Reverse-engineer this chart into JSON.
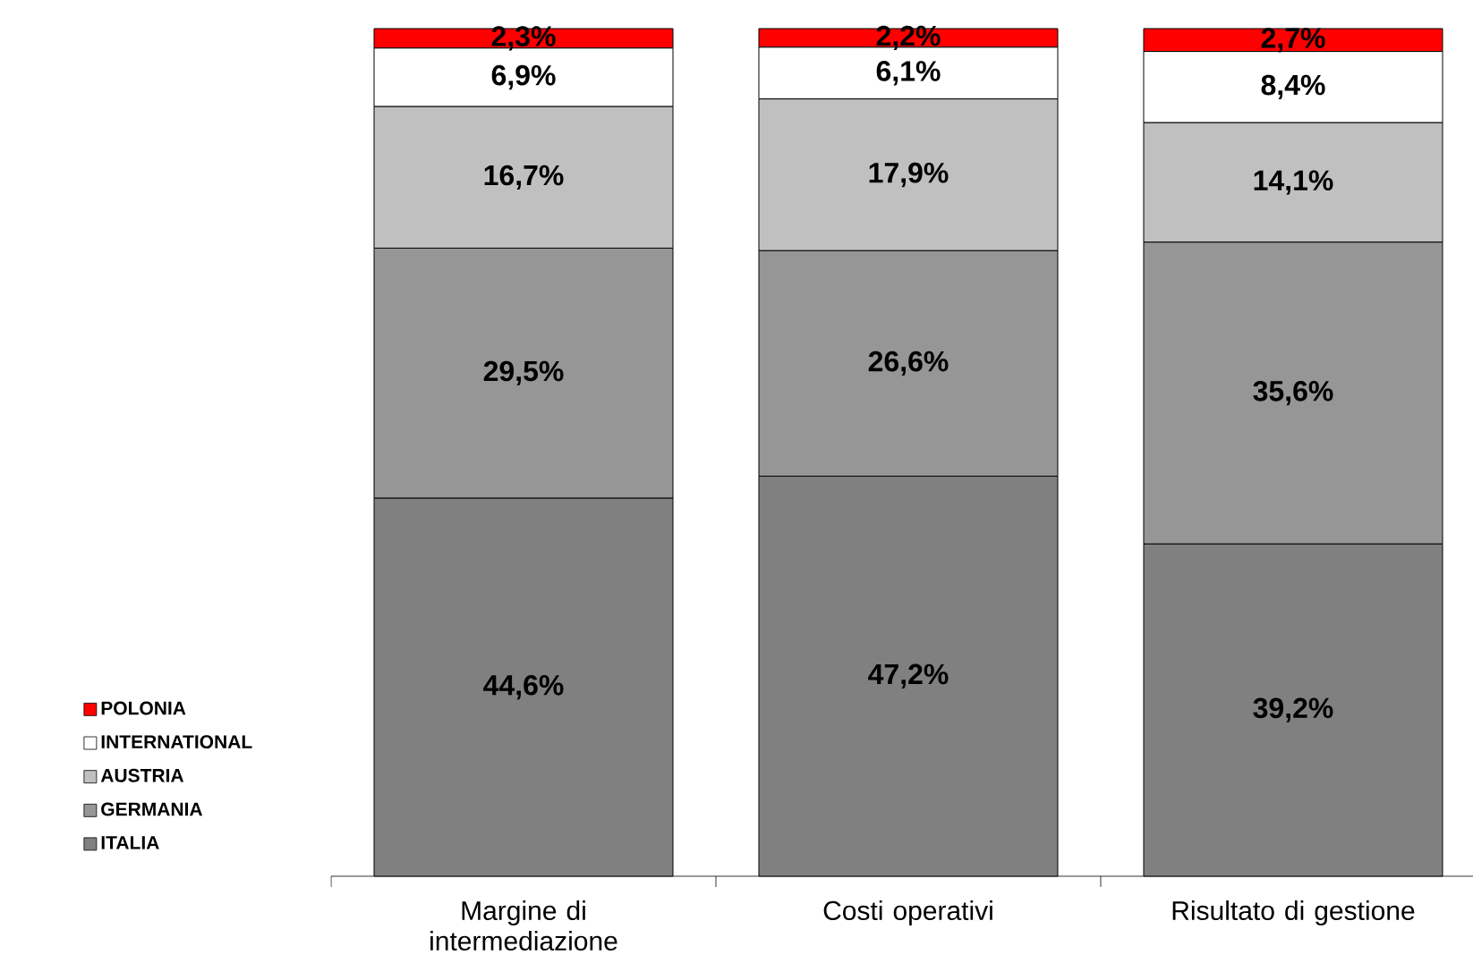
{
  "chart_data": {
    "type": "bar",
    "stacked": true,
    "categories": [
      "Margine di intermediazione",
      "Costi operativi",
      "Risultato di gestione"
    ],
    "series": [
      {
        "name": "ITALIA",
        "color": "#808080",
        "values": [
          44.6,
          47.2,
          39.2
        ],
        "value_labels": [
          "44,6%",
          "47,2%",
          "39,2%"
        ]
      },
      {
        "name": "GERMANIA",
        "color": "#969696",
        "values": [
          29.5,
          26.6,
          35.6
        ],
        "value_labels": [
          "29,5%",
          "26,6%",
          "35,6%"
        ]
      },
      {
        "name": "AUSTRIA",
        "color": "#c0c0c0",
        "values": [
          16.7,
          17.9,
          14.1
        ],
        "value_labels": [
          "16,7%",
          "17,9%",
          "14,1%"
        ]
      },
      {
        "name": "INTERNATIONAL",
        "color": "#ffffff",
        "values": [
          6.9,
          6.1,
          8.4
        ],
        "value_labels": [
          "6,9%",
          "6,1%",
          "8,4%"
        ]
      },
      {
        "name": "POLONIA",
        "color": "#ff0000",
        "values": [
          2.3,
          2.2,
          2.7
        ],
        "value_labels": [
          "2,3%",
          "2,2%",
          "2,7%"
        ]
      }
    ],
    "ylim": [
      0,
      100
    ],
    "tick_labels": "x",
    "legend": "bottom left"
  }
}
